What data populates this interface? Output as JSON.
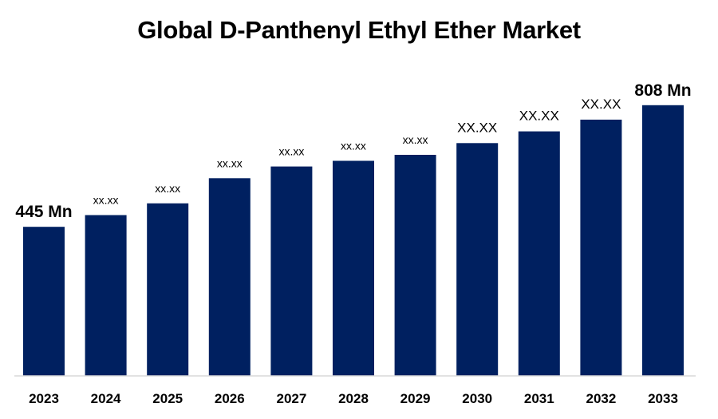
{
  "chart_data": {
    "type": "bar",
    "title": "Global D-Panthenyl Ethyl Ether Market",
    "categories": [
      "2023",
      "2024",
      "2025",
      "2026",
      "2027",
      "2028",
      "2029",
      "2030",
      "2031",
      "2032",
      "2033"
    ],
    "values": [
      445,
      480,
      515,
      590,
      625,
      642,
      660,
      695,
      730,
      765,
      808
    ],
    "data_labels": [
      "445 Mn",
      "xx.xx",
      "xx.xx",
      "xx.xx",
      "xx.xx",
      "xx.xx",
      "xx.xx",
      "XX.XX",
      "XX.XX",
      "XX.XX",
      "808 Mn"
    ],
    "bar_color": "#002060",
    "ylim": [
      0,
      860
    ],
    "grid": false,
    "legend": "none",
    "xlabel": "",
    "ylabel": ""
  }
}
